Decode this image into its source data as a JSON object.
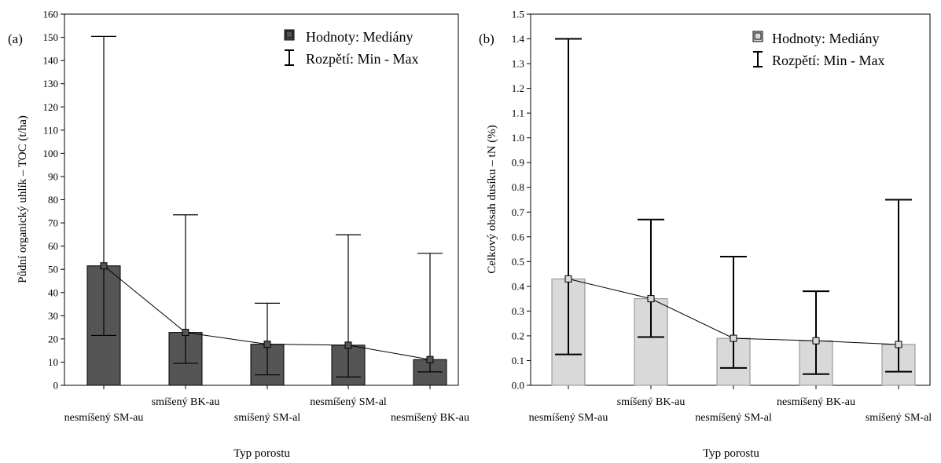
{
  "chart_data": [
    {
      "type": "bar",
      "panel_label": "(a)",
      "xlabel": "Typ porostu",
      "ylabel": "Půdní organický uhlík – TOC (t/ha)",
      "ylim": [
        0,
        160
      ],
      "yticks": [
        0,
        10,
        20,
        30,
        40,
        50,
        60,
        70,
        80,
        90,
        100,
        110,
        120,
        130,
        140,
        150,
        160
      ],
      "categories": [
        "nesmíšený SM-au",
        "smíšený BK-au",
        "smíšený SM-al",
        "nesmíšený SM-al",
        "nesmíšený BK-au"
      ],
      "series": [
        {
          "name": "Hodnoty: Mediány",
          "values": [
            51.5,
            22.8,
            17.7,
            17.3,
            11.1
          ]
        },
        {
          "name": "Rozpětí: Min - Max",
          "min": [
            21.5,
            9.5,
            4.5,
            3.6,
            5.8
          ],
          "max": [
            150.4,
            73.5,
            35.4,
            64.9,
            56.9
          ]
        }
      ],
      "legend": [
        "Hodnoty: Mediány",
        "Rozpětí: Min - Max"
      ],
      "legend_position": "top-right",
      "bar_color": "#555555"
    },
    {
      "type": "bar",
      "panel_label": "(b)",
      "xlabel": "Typ porostu",
      "ylabel": "Celkový obsah dusíku – tN (%)",
      "ylim": [
        0,
        1.5
      ],
      "yticks": [
        "0.0",
        "0.1",
        "0.2",
        "0.3",
        "0.4",
        "0.5",
        "0.6",
        "0.7",
        "0.8",
        "0.9",
        "1.0",
        "1.1",
        "1.2",
        "1.3",
        "1.4",
        "1.5"
      ],
      "categories": [
        "nesmíšený SM-au",
        "smíšený BK-au",
        "nesmíšený SM-al",
        "nesmíšený BK-au",
        "smíšený SM-al"
      ],
      "series": [
        {
          "name": "Hodnoty: Mediány",
          "values": [
            0.43,
            0.35,
            0.19,
            0.18,
            0.165
          ]
        },
        {
          "name": "Rozpětí: Min - Max",
          "min": [
            0.125,
            0.195,
            0.07,
            0.045,
            0.055
          ],
          "max": [
            1.4,
            0.67,
            0.52,
            0.38,
            0.75
          ]
        }
      ],
      "legend": [
        "Hodnoty: Mediány",
        "Rozpětí: Min - Max"
      ],
      "legend_position": "top-right",
      "bar_color": "#d9d9d9"
    }
  ]
}
